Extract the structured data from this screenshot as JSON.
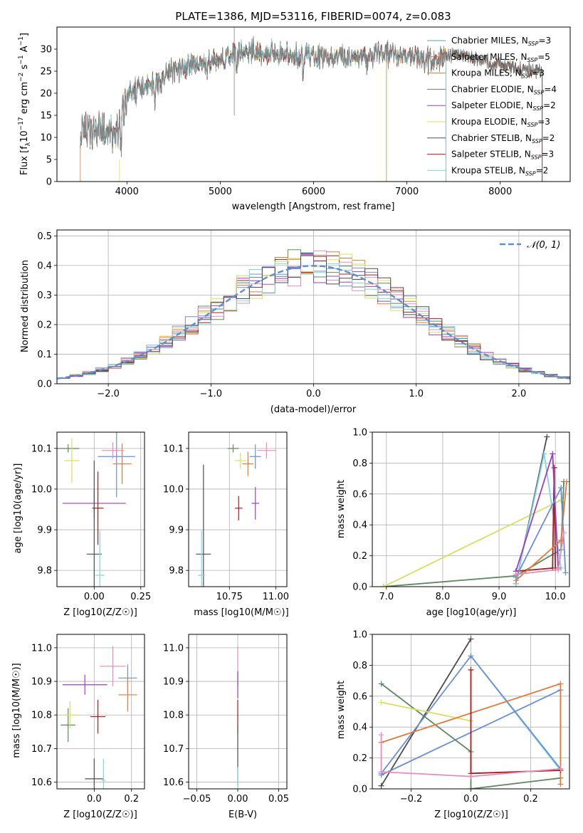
{
  "chart_data": [
    {
      "id": "spectrum",
      "type": "line",
      "title": "PLATE=1386, MJD=53116, FIBERID=0074, z=0.083",
      "xlabel": "wavelength [Angstrom, rest frame]",
      "ylabel": "Flux [f_λ10^-17 erg cm^-2 s^-1 A^-1]",
      "ylabel_parts": {
        "a": "Flux [f",
        "b": "λ",
        "c": "10",
        "d": "−17",
        "e": " erg cm",
        "f": "−2",
        "g": " s",
        "h": "−1",
        "i": " A",
        "j": "−1",
        "k": "]"
      },
      "xlim": [
        3250,
        8750
      ],
      "ylim": [
        0,
        35
      ],
      "xticks": [
        4000,
        5000,
        6000,
        7000,
        8000
      ],
      "yticks": [
        0,
        5,
        10,
        15,
        20,
        25,
        30
      ],
      "grid": false,
      "legend_position": "top-right",
      "continuum": [
        [
          3500,
          11
        ],
        [
          3700,
          12
        ],
        [
          3900,
          10
        ],
        [
          3950,
          18
        ],
        [
          4100,
          21
        ],
        [
          4300,
          22
        ],
        [
          4500,
          25.5
        ],
        [
          4800,
          26.5
        ],
        [
          5000,
          27.5
        ],
        [
          5200,
          29
        ],
        [
          5400,
          29.5
        ],
        [
          5600,
          29
        ],
        [
          5800,
          28.5
        ],
        [
          6000,
          28.5
        ],
        [
          6200,
          28
        ],
        [
          6500,
          28.5
        ],
        [
          6800,
          29
        ],
        [
          7000,
          28.5
        ],
        [
          7200,
          27.5
        ],
        [
          7400,
          28.5
        ],
        [
          7600,
          28.5
        ],
        [
          7800,
          27.5
        ],
        [
          8000,
          26.5
        ],
        [
          8200,
          25.5
        ],
        [
          8450,
          25
        ]
      ],
      "series": [
        {
          "label": {
            "pre": "Chabrier MILES, N",
            "sub": "SSP",
            "post": "=3"
          },
          "color": "#5f9ea0",
          "xmax": 8450
        },
        {
          "label": {
            "pre": "Salpeter MILES, N",
            "sub": "SSP",
            "post": "=5"
          },
          "color": "#e8663d",
          "xmax": 8450
        },
        {
          "label": {
            "pre": "Kroupa MILES, N",
            "sub": "SSP",
            "post": "=3"
          },
          "color": "#d4832a",
          "xmax": 7420
        },
        {
          "label": {
            "pre": "Chabrier ELODIE, N",
            "sub": "SSP",
            "post": "=4"
          },
          "color": "#5b8a5b",
          "xmax": 6780
        },
        {
          "label": {
            "pre": "Salpeter ELODIE, N",
            "sub": "SSP",
            "post": "=2"
          },
          "color": "#9b3fc1",
          "xmax": 6780
        },
        {
          "label": {
            "pre": "Kroupa ELODIE, N",
            "sub": "SSP",
            "post": "=3"
          },
          "color": "#d8e05a",
          "xmax": 6780
        },
        {
          "label": {
            "pre": "Chabrier STELIB, N",
            "sub": "SSP",
            "post": "=2"
          },
          "color": "#4d4d4d",
          "xmax": 8450
        },
        {
          "label": {
            "pre": "Salpeter STELIB, N",
            "sub": "SSP",
            "post": "=3"
          },
          "color": "#a81c1c",
          "xmax": 7420
        },
        {
          "label": {
            "pre": "Kroupa STELIB, N",
            "sub": "SSP",
            "post": "=2"
          },
          "color": "#7fd6e0",
          "xmax": 7420
        }
      ]
    },
    {
      "id": "residuals",
      "type": "line",
      "xlabel": "(data-model)/error",
      "ylabel": "Normed distribution",
      "xlim": [
        -2.5,
        2.5
      ],
      "ylim": [
        0,
        0.52
      ],
      "xticks": [
        -2,
        -1,
        0,
        1,
        2
      ],
      "yticks": [
        0.0,
        0.1,
        0.2,
        0.3,
        0.4,
        0.5
      ],
      "grid": true,
      "legend_position": "top-right",
      "gaussian_label": "𝒩(0, 1)",
      "gaussian_color": "#5b8fd6",
      "bin_width": 0.125,
      "step_colors": [
        "#6a8fd8",
        "#e07b39",
        "#5b8a5b",
        "#a81c1c",
        "#9b3fc1",
        "#d8e05a",
        "#e98bb8",
        "#7fd6e0",
        "#4d4d4d"
      ]
    },
    {
      "id": "age_vs_Z",
      "type": "scatter",
      "xlabel": "Z [log10(Z/Z☉)]",
      "ylabel": "age  [log10(age/yr)]",
      "xlim": [
        -0.2,
        0.27
      ],
      "ylim": [
        9.76,
        10.14
      ],
      "xticks": [
        0.0,
        0.25
      ],
      "yticks": [
        9.8,
        9.9,
        10.0,
        10.1
      ],
      "grid": true,
      "points": [
        {
          "x": -0.14,
          "y": 10.1,
          "xerr": 0.06,
          "yerr": 0.01,
          "color": "#5b8a5b"
        },
        {
          "x": -0.12,
          "y": 10.07,
          "xerr": 0.04,
          "yerr": 0.055,
          "color": "#d8e05a"
        },
        {
          "x": 0.0,
          "y": 9.965,
          "xerr": 0.17,
          "yerr": 0.035,
          "color": "#9b3fc1"
        },
        {
          "x": 0.02,
          "y": 9.953,
          "xerr": 0.03,
          "yerr": 0.09,
          "color": "#a81c1c"
        },
        {
          "x": 0.0,
          "y": 9.84,
          "xerr": 0.04,
          "yerr": 0.23,
          "color": "#4d4d4d"
        },
        {
          "x": 0.03,
          "y": 9.788,
          "xerr": 0.025,
          "yerr": 0.11,
          "color": "#7fd6e0"
        },
        {
          "x": 0.12,
          "y": 10.08,
          "xerr": 0.1,
          "yerr": 0.1,
          "color": "#6a8fd8"
        },
        {
          "x": 0.15,
          "y": 10.062,
          "xerr": 0.05,
          "yerr": 0.05,
          "color": "#e07b39"
        },
        {
          "x": 0.1,
          "y": 10.095,
          "xerr": 0.06,
          "yerr": 0.02,
          "color": "#e98bb8"
        }
      ]
    },
    {
      "id": "age_vs_mass",
      "type": "scatter",
      "xlabel": "mass [log10(M/M☉)]",
      "ylabel": "",
      "xlim": [
        10.53,
        11.06
      ],
      "ylim": [
        9.76,
        10.14
      ],
      "xticks": [
        10.75,
        11.0
      ],
      "yticks": [
        9.8,
        9.9,
        10.0,
        10.1
      ],
      "grid": true,
      "points": [
        {
          "x": 10.77,
          "y": 10.1,
          "xerr": 0.03,
          "yerr": 0.01,
          "color": "#5b8a5b"
        },
        {
          "x": 10.81,
          "y": 10.07,
          "xerr": 0.03,
          "yerr": 0.02,
          "color": "#d8e05a"
        },
        {
          "x": 10.89,
          "y": 9.965,
          "xerr": 0.02,
          "yerr": 0.04,
          "color": "#9b3fc1"
        },
        {
          "x": 10.8,
          "y": 9.953,
          "xerr": 0.02,
          "yerr": 0.03,
          "color": "#a81c1c"
        },
        {
          "x": 10.61,
          "y": 9.84,
          "xerr": 0.04,
          "yerr": 0.22,
          "color": "#4d4d4d"
        },
        {
          "x": 10.6,
          "y": 9.788,
          "xerr": 0.02,
          "yerr": 0.11,
          "color": "#7fd6e0"
        },
        {
          "x": 10.89,
          "y": 10.08,
          "xerr": 0.03,
          "yerr": 0.03,
          "color": "#6a8fd8"
        },
        {
          "x": 10.85,
          "y": 10.062,
          "xerr": 0.03,
          "yerr": 0.03,
          "color": "#e07b39"
        },
        {
          "x": 10.95,
          "y": 10.095,
          "xerr": 0.05,
          "yerr": 0.02,
          "color": "#e98bb8"
        }
      ]
    },
    {
      "id": "weight_vs_age",
      "type": "line",
      "xlabel": "age  [log10(age/yr)]",
      "ylabel": "mass weight",
      "xlim": [
        6.75,
        10.25
      ],
      "ylim": [
        0,
        1.0
      ],
      "xticks": [
        7,
        8,
        9,
        10
      ],
      "yticks": [
        0.0,
        0.2,
        0.4,
        0.6,
        0.8,
        1.0
      ],
      "grid": true,
      "series": [
        {
          "color": "#5b8a5b",
          "points": [
            [
              6.95,
              0.0
            ],
            [
              9.3,
              0.07
            ],
            [
              10.1,
              0.24
            ],
            [
              10.15,
              0.68
            ]
          ]
        },
        {
          "color": "#d8e05a",
          "points": [
            [
              6.95,
              0.0
            ],
            [
              10.1,
              0.56
            ]
          ]
        },
        {
          "color": "#4d4d4d",
          "points": [
            [
              9.3,
              0.02
            ],
            [
              9.85,
              0.97
            ]
          ]
        },
        {
          "color": "#7fd6e0",
          "points": [
            [
              9.3,
              0.02
            ],
            [
              9.8,
              0.86
            ],
            [
              10.1,
              0.12
            ]
          ]
        },
        {
          "color": "#a81c1c",
          "points": [
            [
              9.3,
              0.1
            ],
            [
              9.95,
              0.12
            ],
            [
              9.98,
              0.77
            ],
            [
              10.0,
              0.12
            ]
          ]
        },
        {
          "color": "#9b3fc1",
          "points": [
            [
              9.3,
              0.1
            ],
            [
              9.95,
              0.86
            ],
            [
              10.05,
              0.12
            ]
          ]
        },
        {
          "color": "#e07b39",
          "points": [
            [
              9.3,
              0.04
            ],
            [
              10.1,
              0.3
            ],
            [
              10.2,
              0.68
            ]
          ]
        },
        {
          "color": "#6a8fd8",
          "points": [
            [
              9.3,
              0.06
            ],
            [
              10.1,
              0.64
            ],
            [
              10.18,
              0.09
            ]
          ]
        },
        {
          "color": "#e98bb8",
          "points": [
            [
              9.3,
              0.08
            ],
            [
              10.05,
              0.11
            ],
            [
              10.15,
              0.35
            ],
            [
              10.12,
              0.28
            ]
          ]
        }
      ]
    },
    {
      "id": "mass_vs_Z",
      "type": "scatter",
      "xlabel": "Z [log10(Z/Z☉)]",
      "ylabel": "mass [log10(M/M☉)]",
      "xlim": [
        -0.2,
        0.27
      ],
      "ylim": [
        10.58,
        11.04
      ],
      "xticks": [
        0.0,
        0.2
      ],
      "yticks": [
        10.6,
        10.7,
        10.8,
        10.9,
        11.0
      ],
      "grid": true,
      "points": [
        {
          "x": -0.14,
          "y": 10.77,
          "xerr": 0.04,
          "yerr": 0.05,
          "color": "#5b8a5b"
        },
        {
          "x": -0.13,
          "y": 10.8,
          "xerr": 0.04,
          "yerr": 0.04,
          "color": "#d8e05a"
        },
        {
          "x": -0.05,
          "y": 10.89,
          "xerr": 0.12,
          "yerr": 0.03,
          "color": "#9b3fc1"
        },
        {
          "x": 0.02,
          "y": 10.795,
          "xerr": 0.04,
          "yerr": 0.05,
          "color": "#a81c1c"
        },
        {
          "x": 0.0,
          "y": 10.61,
          "xerr": 0.05,
          "yerr": 0.06,
          "color": "#4d4d4d"
        },
        {
          "x": 0.05,
          "y": 10.605,
          "xerr": 0.01,
          "yerr": 0.065,
          "color": "#7fd6e0"
        },
        {
          "x": 0.18,
          "y": 10.91,
          "xerr": 0.05,
          "yerr": 0.04,
          "color": "#6a8fd8"
        },
        {
          "x": 0.18,
          "y": 10.86,
          "xerr": 0.05,
          "yerr": 0.05,
          "color": "#e07b39"
        },
        {
          "x": 0.1,
          "y": 10.945,
          "xerr": 0.07,
          "yerr": 0.06,
          "color": "#e98bb8"
        }
      ]
    },
    {
      "id": "mass_vs_EBV",
      "type": "scatter",
      "xlabel": "E(B-V)",
      "ylabel": "",
      "xlim": [
        -0.06,
        0.06
      ],
      "ylim": [
        10.58,
        11.04
      ],
      "xticks": [
        -0.05,
        0.0,
        0.05
      ],
      "yticks": [
        10.6,
        10.7,
        10.8,
        10.9,
        11.0
      ],
      "grid": true,
      "points": [
        {
          "x": 0.0,
          "y": 10.945,
          "xerr": 0,
          "yerr": 0.06,
          "color": "#e98bb8"
        },
        {
          "x": 0.0,
          "y": 10.89,
          "xerr": 0,
          "yerr": 0.04,
          "color": "#9b3fc1"
        },
        {
          "x": 0.0,
          "y": 10.795,
          "xerr": 0,
          "yerr": 0.05,
          "color": "#a81c1c"
        },
        {
          "x": 0.0,
          "y": 10.68,
          "xerr": 0,
          "yerr": 0.09,
          "color": "#4d4d4d"
        },
        {
          "x": 0.0,
          "y": 10.61,
          "xerr": 0,
          "yerr": 0.035,
          "color": "#7fd6e0"
        }
      ]
    },
    {
      "id": "weight_vs_Z",
      "type": "line",
      "xlabel": "Z [log10(Z/Z☉)]",
      "ylabel": "mass weight",
      "xlim": [
        -0.33,
        0.33
      ],
      "ylim": [
        0,
        1.0
      ],
      "xticks": [
        -0.2,
        0.0,
        0.2
      ],
      "yticks": [
        0.0,
        0.2,
        0.4,
        0.6,
        0.8,
        1.0
      ],
      "grid": true,
      "series": [
        {
          "color": "#4d4d4d",
          "points": [
            [
              -0.3,
              0.02
            ],
            [
              0.0,
              0.97
            ]
          ]
        },
        {
          "color": "#7fd6e0",
          "points": [
            [
              0.0,
              0.86
            ],
            [
              0.3,
              0.12
            ]
          ]
        },
        {
          "color": "#6a8fd8",
          "points": [
            [
              -0.3,
              0.1
            ],
            [
              0.0,
              0.86
            ],
            [
              0.3,
              0.13
            ],
            [
              0.3,
              0.64
            ],
            [
              -0.3,
              0.09
            ]
          ]
        },
        {
          "color": "#5b8a5b",
          "points": [
            [
              -0.3,
              0.68
            ],
            [
              0.0,
              0.24
            ],
            [
              0.0,
              0.0
            ],
            [
              0.3,
              0.07
            ]
          ]
        },
        {
          "color": "#d8e05a",
          "points": [
            [
              -0.3,
              0.56
            ],
            [
              0.0,
              0.44
            ]
          ]
        },
        {
          "color": "#e07b39",
          "points": [
            [
              -0.3,
              0.3
            ],
            [
              0.3,
              0.68
            ],
            [
              0.3,
              0.03
            ]
          ]
        },
        {
          "color": "#a81c1c",
          "points": [
            [
              0.0,
              0.77
            ],
            [
              0.0,
              0.1
            ],
            [
              0.3,
              0.12
            ]
          ]
        },
        {
          "color": "#e98bb8",
          "points": [
            [
              -0.3,
              0.35
            ],
            [
              -0.3,
              0.11
            ],
            [
              0.0,
              0.08
            ],
            [
              0.3,
              0.13
            ]
          ]
        }
      ]
    }
  ]
}
